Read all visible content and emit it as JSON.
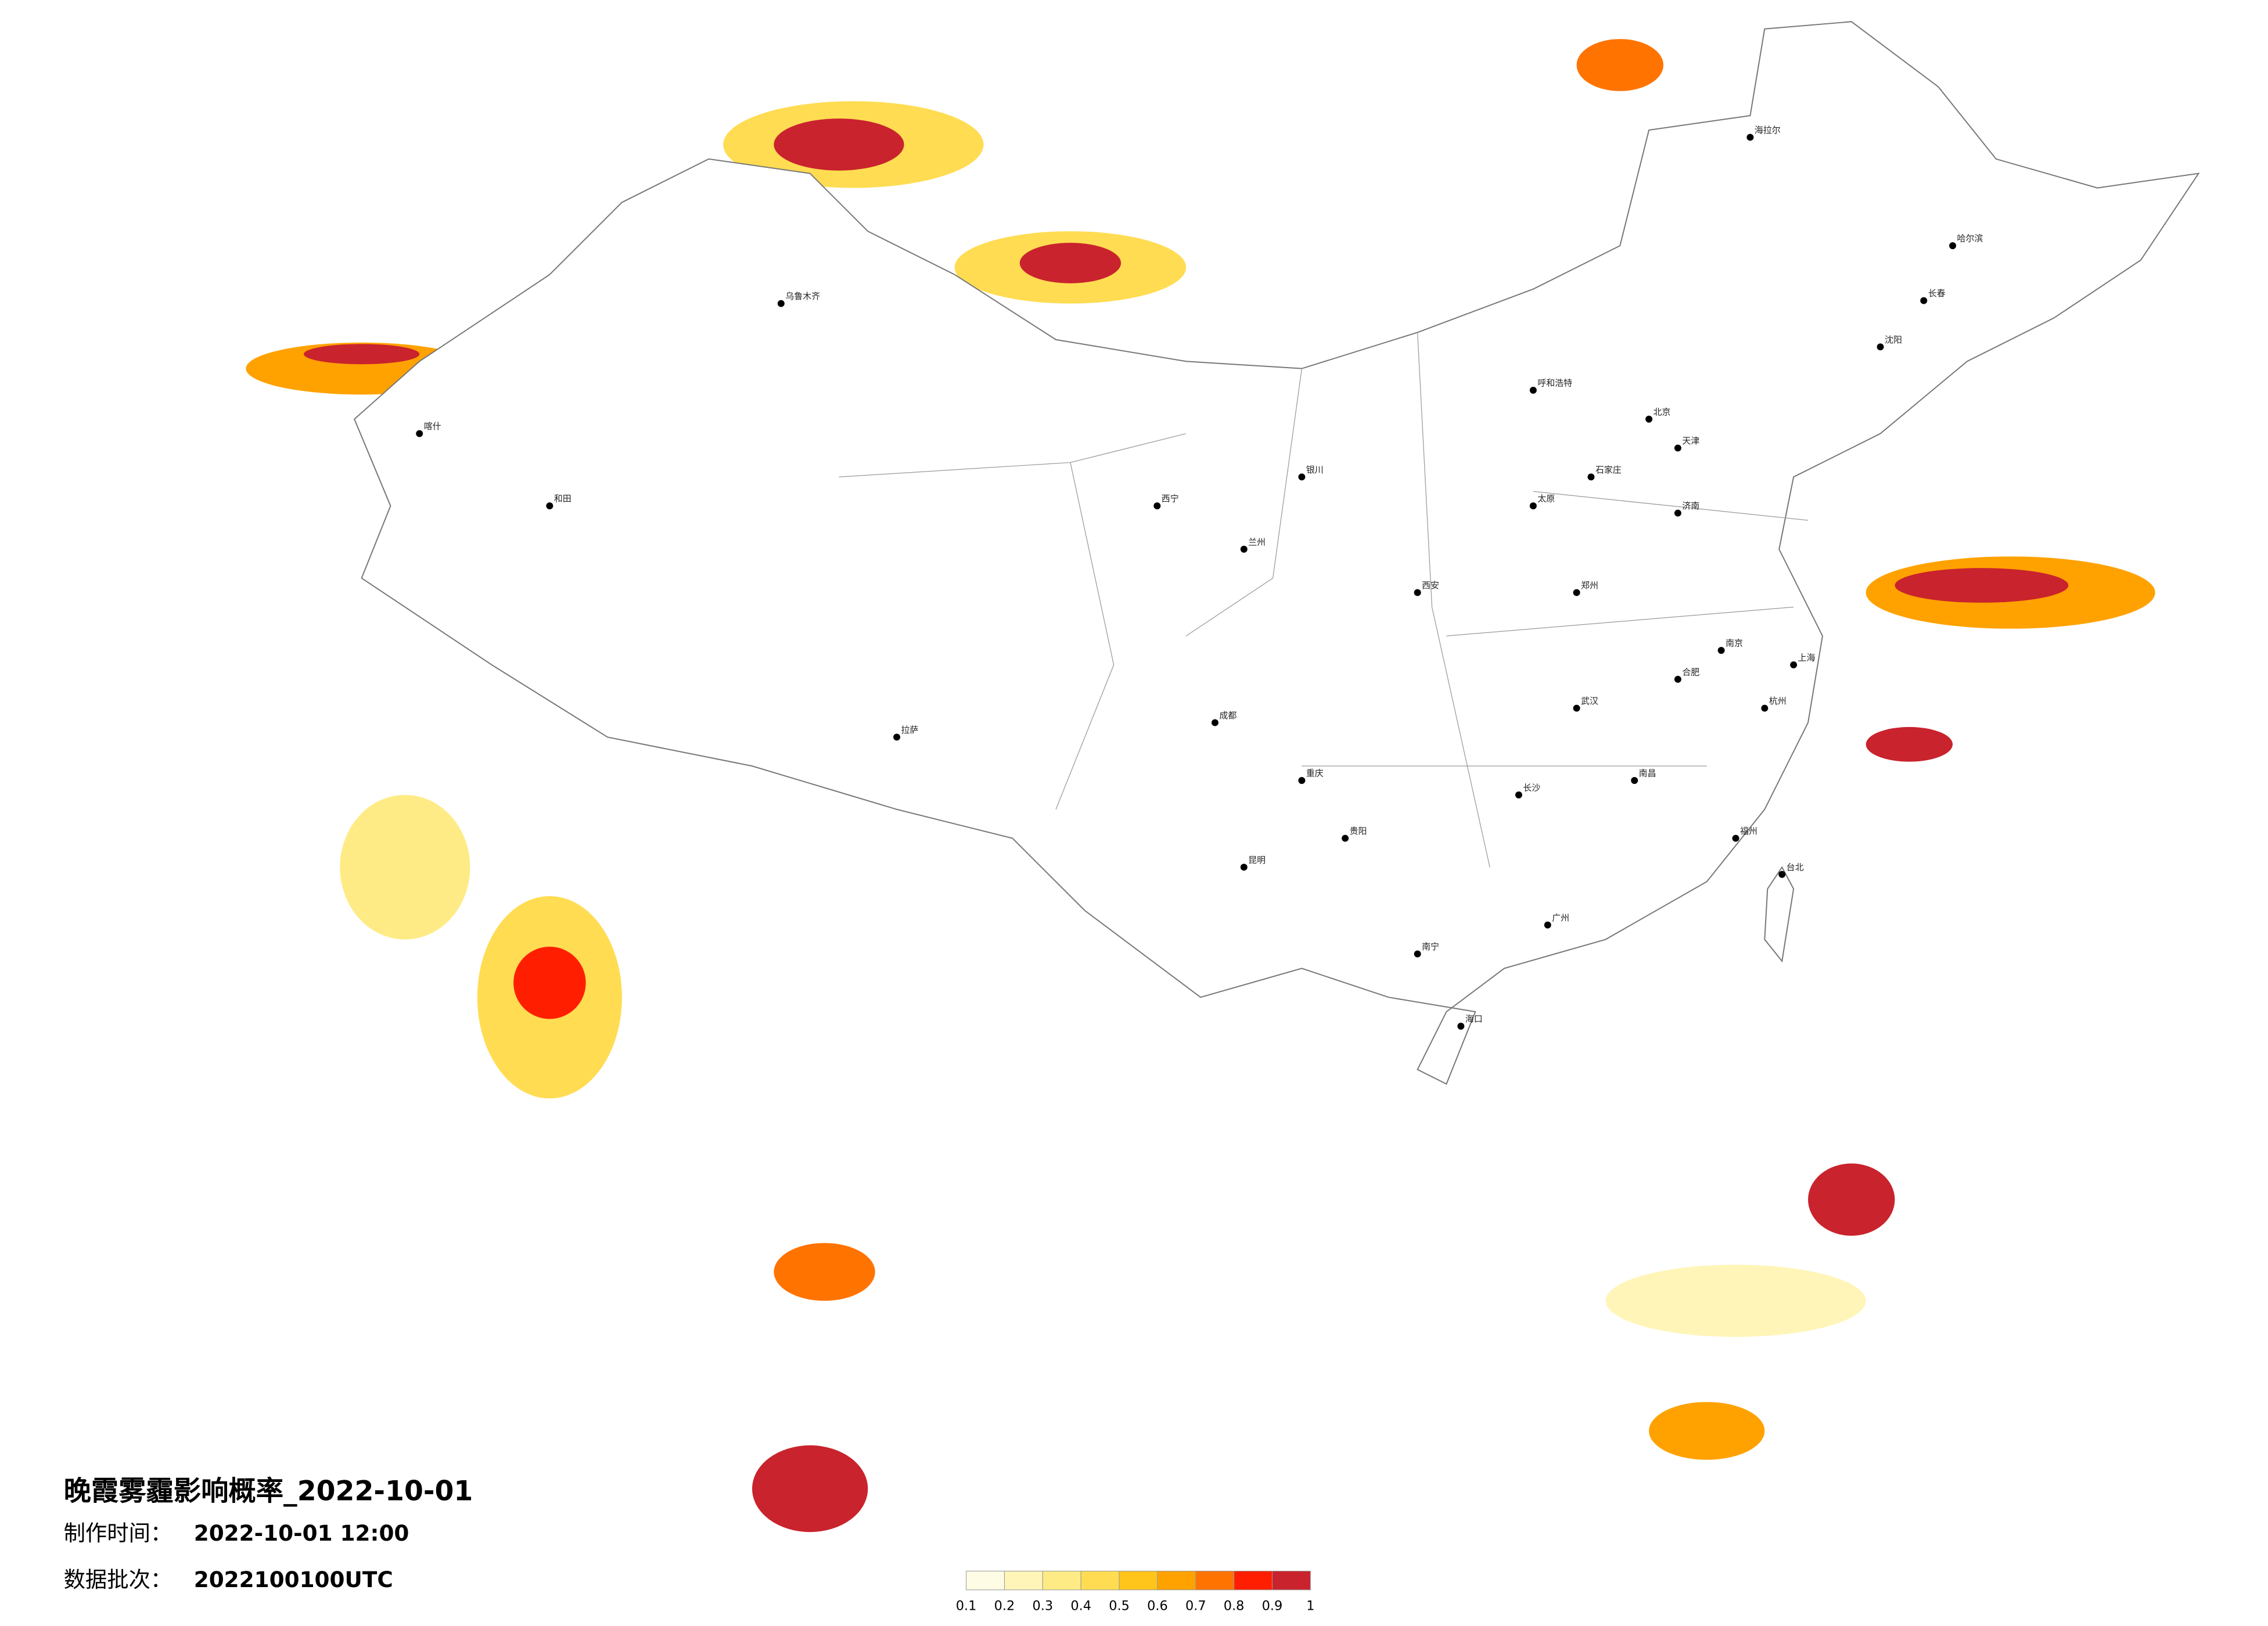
{
  "title": "晚霞雾霾影响概率_2022-10-01",
  "info": [
    {
      "label": "制作时间：",
      "value": "2022-10-01 12:00"
    },
    {
      "label": "数据批次：",
      "value": "2022100100UTC"
    }
  ],
  "legend": {
    "colors": [
      "#fffce6",
      "#fff5b8",
      "#ffeb85",
      "#ffdc52",
      "#ffc51a",
      "#ffa200",
      "#ff7300",
      "#ff1e00",
      "#c9232d"
    ],
    "ticks": [
      0.1,
      0.2,
      0.3,
      0.4,
      0.5,
      0.6,
      0.7,
      0.8,
      0.9,
      1
    ]
  },
  "cities": [
    "海拉尔",
    "哈尔滨",
    "长春",
    "沈阳",
    "北京",
    "天津",
    "石家庄",
    "太原",
    "呼和浩特",
    "济南",
    "郑州",
    "西安",
    "兰州",
    "西宁",
    "银川",
    "乌鲁木齐",
    "拉萨",
    "成都",
    "重庆",
    "贵阳",
    "昆明",
    "南宁",
    "广州",
    "海口",
    "长沙",
    "武汉",
    "南昌",
    "合肥",
    "南京",
    "上海",
    "杭州",
    "福州",
    "台北",
    "喀什",
    "和田"
  ]
}
